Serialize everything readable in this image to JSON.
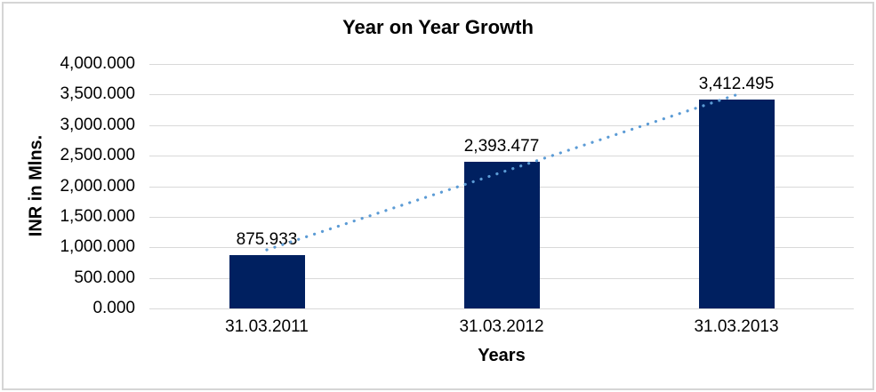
{
  "window": {
    "background": "#ffffff",
    "border_color": "#d5d5d5"
  },
  "chart_data": {
    "type": "bar",
    "title": "Year on Year Growth",
    "xlabel": "Years",
    "ylabel": "INR in Mlns.",
    "categories": [
      "31.03.2011",
      "31.03.2012",
      "31.03.2013"
    ],
    "values": [
      875.933,
      2393.477,
      3412.495
    ],
    "value_labels": [
      "875.933",
      "2,393.477",
      "3,412.495"
    ],
    "y_ticks": [
      {
        "label": "4,000.000",
        "value": 4000
      },
      {
        "label": "3,500.000",
        "value": 3500
      },
      {
        "label": "3,000.000",
        "value": 3000
      },
      {
        "label": "2,500.000",
        "value": 2500
      },
      {
        "label": "2,000.000",
        "value": 2000
      },
      {
        "label": "1,500.000",
        "value": 1500
      },
      {
        "label": "1,000.000",
        "value": 1000
      },
      {
        "label": "500.000",
        "value": 500
      },
      {
        "label": "0.000",
        "value": 0
      }
    ],
    "ylim": [
      0,
      4000
    ],
    "grid": true,
    "legend_position": "none",
    "bar_color": "#002060",
    "gridline_color": "#d9d9d9",
    "trendline": {
      "type": "linear",
      "style": "dotted",
      "color": "#5b9bd5"
    }
  }
}
